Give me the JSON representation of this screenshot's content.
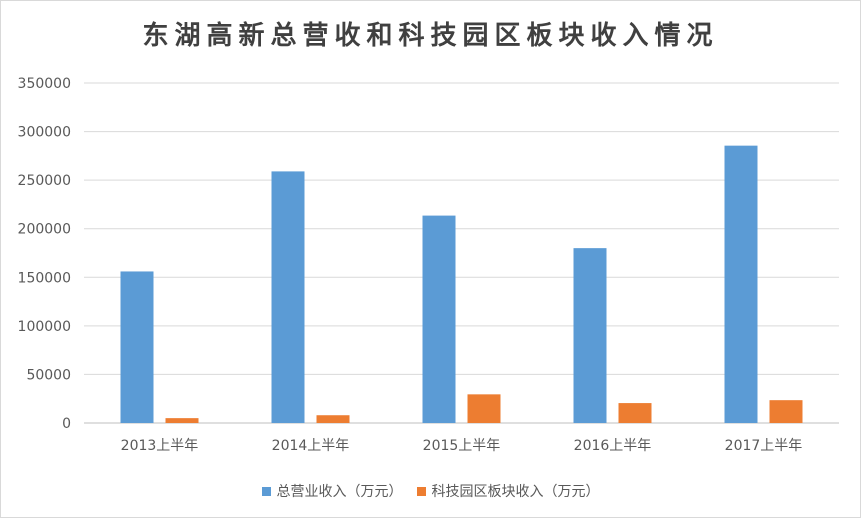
{
  "chart_data": {
    "type": "bar",
    "title": "东湖高新总营收和科技园区板块收入情况",
    "categories": [
      "2013上半年",
      "2014上半年",
      "2015上半年",
      "2016上半年",
      "2017上半年"
    ],
    "series": [
      {
        "name": "总营业收入（万元）",
        "color": "#5B9BD5",
        "values": [
          156000,
          259000,
          213500,
          180000,
          285500
        ]
      },
      {
        "name": "科技园区板块收入（万元）",
        "color": "#ED7D31",
        "values": [
          5000,
          8000,
          29500,
          20500,
          23500
        ]
      }
    ],
    "yticks": [
      "0",
      "50000",
      "100000",
      "150000",
      "200000",
      "250000",
      "300000",
      "350000"
    ],
    "ylim": [
      0,
      350000
    ],
    "grid": true,
    "legend_position": "bottom"
  }
}
